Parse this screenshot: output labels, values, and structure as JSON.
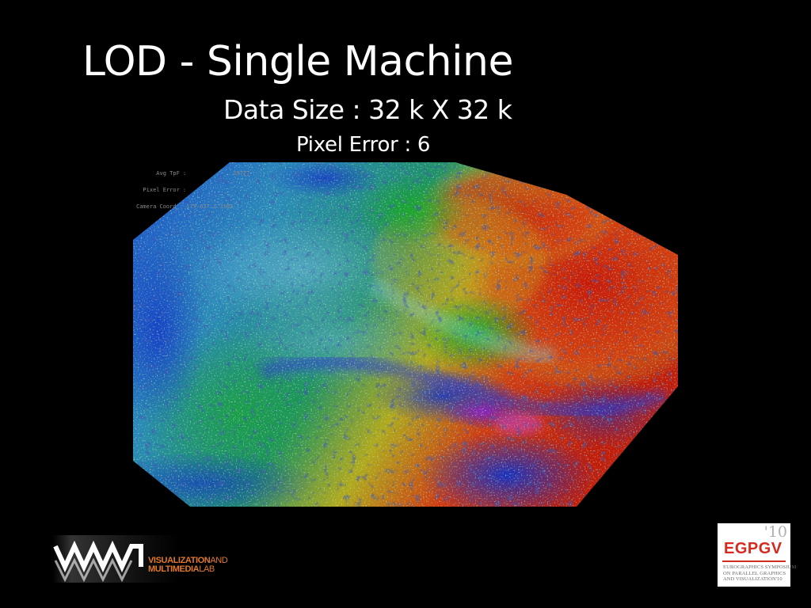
{
  "slide": {
    "title": "LOD - Single Machine",
    "subtitle": "Data Size : 32 k X 32 k",
    "subtitle2": "Pixel Error : 6"
  },
  "overlay": {
    "line1": "      Avg TpF :              29777",
    "line2": "  Pixel Error :",
    "line3": "Camera Coord : 175.637 1.3103"
  },
  "logos": {
    "lab_line1": "VISUALIZATION",
    "lab_line1_suffix": "AND",
    "lab_line2": "MULTIMEDIA",
    "lab_line2_suffix": "LAB",
    "egpgv_year": "'10",
    "egpgv_name": "EGPGV",
    "egpgv_desc1": "Eurographics Symposium",
    "egpgv_desc2": "on Parallel Graphics",
    "egpgv_desc3": "and Visualization'10"
  },
  "colors": {
    "background": "#000000",
    "text": "#ffffff",
    "lab_orange": "#e1782a",
    "egpgv_red": "#d42a1f"
  }
}
